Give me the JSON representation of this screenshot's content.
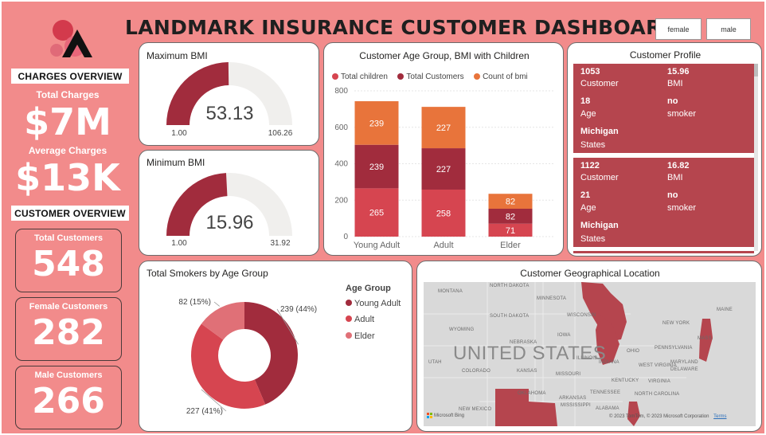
{
  "header": {
    "title": "LANDMARK INSURANCE CUSTOMER DASHBOARD",
    "slicer_options": [
      "female",
      "male"
    ]
  },
  "charges_overview": {
    "heading": "CHARGES OVERVIEW",
    "total_label": "Total Charges",
    "total_value": "$7M",
    "average_label": "Average Charges",
    "average_value": "$13K"
  },
  "customer_overview": {
    "heading": "CUSTOMER OVERVIEW",
    "cards": [
      {
        "label": "Total Customers",
        "value": "548"
      },
      {
        "label": "Female Customers",
        "value": "282"
      },
      {
        "label": "Male Customers",
        "value": "266"
      }
    ]
  },
  "gauges": [
    {
      "title": "Maximum BMI",
      "value": 53.13,
      "value_text": "53.13",
      "min": 1.0,
      "max": 106.26,
      "min_text": "1.00",
      "max_text": "106.26"
    },
    {
      "title": "Minimum BMI",
      "value": 15.96,
      "value_text": "15.96",
      "min": 1.0,
      "max": 31.92,
      "min_text": "1.00",
      "max_text": "31.92"
    }
  ],
  "stacked_chart": {
    "title": "Customer Age Group, BMI with Children",
    "chart_data": {
      "type": "bar",
      "stacked": true,
      "categories": [
        "Young Adult",
        "Adult",
        "Elder"
      ],
      "series": [
        {
          "name": "Total children",
          "values": [
            265,
            258,
            71
          ],
          "color": "#d64550"
        },
        {
          "name": "Total Customers",
          "values": [
            239,
            227,
            82
          ],
          "color": "#a12c3d"
        },
        {
          "name": "Count of bmi",
          "values": [
            239,
            227,
            82
          ],
          "color": "#e8743b"
        }
      ],
      "y_ticks": [
        "0",
        "200",
        "400",
        "600",
        "800"
      ],
      "ylim": [
        0,
        800
      ]
    }
  },
  "profile": {
    "title": "Customer Profile",
    "records": [
      {
        "customer": "1053",
        "customer_label": "Customer",
        "bmi": "15.96",
        "bmi_label": "BMI",
        "age": "18",
        "age_label": "Age",
        "smoker": "no",
        "smoker_label": "smoker",
        "state": "Michigan",
        "state_label": "States"
      },
      {
        "customer": "1122",
        "customer_label": "Customer",
        "bmi": "16.82",
        "bmi_label": "BMI",
        "age": "21",
        "age_label": "Age",
        "smoker": "no",
        "smoker_label": "smoker",
        "state": "Michigan",
        "state_label": "States"
      }
    ]
  },
  "smokers_chart": {
    "title": "Total Smokers by Age Group",
    "legend_title": "Age Group",
    "chart_data": {
      "type": "pie",
      "donut": true,
      "categories": [
        "Young Adult",
        "Adult",
        "Elder"
      ],
      "values": [
        239,
        227,
        82
      ],
      "data_labels": [
        "239 (44%)",
        "227 (41%)",
        "82 (15%)"
      ],
      "colors": [
        "#a12c3d",
        "#d64550",
        "#e07077"
      ]
    }
  },
  "map": {
    "title": "Customer Geographical Location",
    "country_label": "UNITED STATES",
    "bing_text": "Microsoft Bing",
    "copyright": "© 2023 TomTom, © 2023 Microsoft Corporation",
    "terms": "Terms",
    "state_labels": [
      "NORTH DAKOTA",
      "MINNESOTA",
      "MONTANA",
      "SOUTH DAKOTA",
      "WISCONSIN",
      "WYOMING",
      "IOWA",
      "NEBRASKA",
      "NEW YORK",
      "PENNSYLVANIA",
      "OHIO",
      "INDIANA",
      "ILLINOIS",
      "UTAH",
      "COLORADO",
      "KANSAS",
      "MISSOURI",
      "WEST VIRGINIA",
      "VIRGINIA",
      "KENTUCKY",
      "MARYLAND",
      "DELAWARE",
      "TENNESSEE",
      "OKLAHOMA",
      "ARKANSAS",
      "NORTH CAROLINA",
      "NEW MEXICO",
      "MISSISSIPPI",
      "ALABAMA",
      "MAINE",
      "MASS."
    ]
  },
  "colors": {
    "background": "#f28b8b",
    "accent_dark": "#a12c3d",
    "accent": "#d64550",
    "orange": "#e8743b",
    "profile_card": "#b5454e"
  }
}
